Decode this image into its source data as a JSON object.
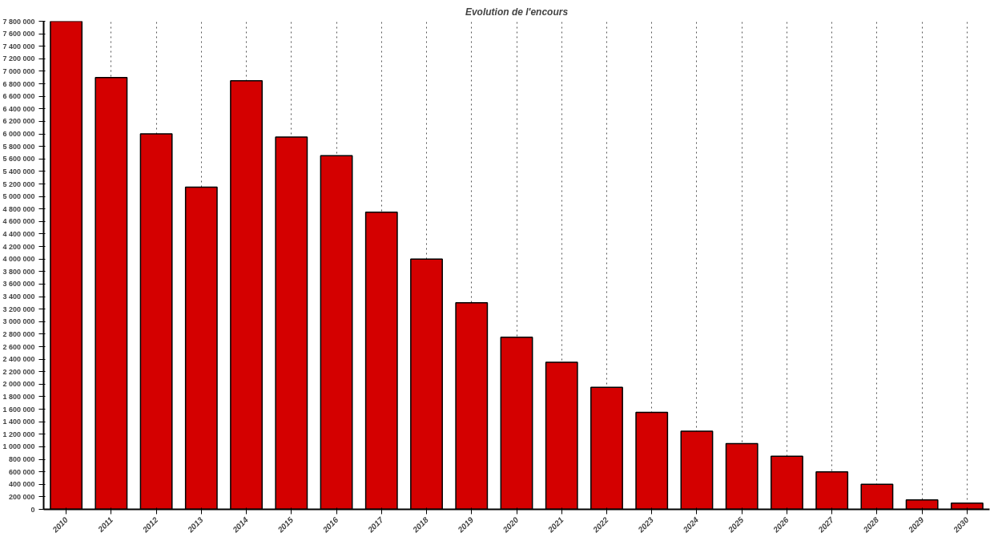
{
  "chart_data": {
    "type": "bar",
    "title": "Evolution de l'encours",
    "categories": [
      "2010",
      "2011",
      "2012",
      "2013",
      "2014",
      "2015",
      "2016",
      "2017",
      "2018",
      "2019",
      "2020",
      "2021",
      "2022",
      "2023",
      "2024",
      "2025",
      "2026",
      "2027",
      "2028",
      "2029",
      "2030"
    ],
    "series": [
      {
        "color": "#d40000",
        "values": [
          7800000,
          6900000,
          6000000,
          5150000,
          6850000,
          5950000,
          5650000,
          4750000,
          4000000,
          3300000,
          2750000,
          2350000,
          1950000,
          1550000,
          1250000,
          1050000,
          850000,
          600000,
          400000,
          150000,
          100000
        ]
      }
    ],
    "ylim": [
      0,
      7800000
    ],
    "yticks": [
      0,
      {
        "value": 200000,
        "label": "200 000"
      },
      {
        "value": 400000,
        "label": "400 000"
      },
      {
        "value": 600000,
        "label": "600 000"
      },
      {
        "value": 800000,
        "label": "800 000"
      },
      {
        "value": 1000000,
        "label": "1 000 000"
      },
      {
        "value": 1200000,
        "label": "1 200 000"
      },
      {
        "value": 1400000,
        "label": "1 400 000"
      },
      {
        "value": 1600000,
        "label": "1 600 000"
      },
      {
        "value": 1800000,
        "label": "1 800 000"
      },
      {
        "value": 2000000,
        "label": "2 000 000"
      },
      {
        "value": 2200000,
        "label": "2 200 000"
      },
      {
        "value": 2400000,
        "label": "2 400 000"
      },
      {
        "value": 2600000,
        "label": "2 600 000"
      },
      {
        "value": 2800000,
        "label": "2 800 000"
      },
      {
        "value": 3000000,
        "label": "3 000 000"
      },
      {
        "value": 3200000,
        "label": "3 200 000"
      },
      {
        "value": 3400000,
        "label": "3 400 000"
      },
      {
        "value": 3600000,
        "label": "3 600 000"
      },
      {
        "value": 3800000,
        "label": "3 800 000"
      },
      {
        "value": 4000000,
        "label": "4 000 000"
      },
      {
        "value": 4200000,
        "label": "4 200 000"
      },
      {
        "value": 4400000,
        "label": "4 400 000"
      },
      {
        "value": 4600000,
        "label": "4 600 000"
      },
      {
        "value": 4800000,
        "label": "4 800 000"
      },
      {
        "value": 5000000,
        "label": "5 000 000"
      },
      {
        "value": 5200000,
        "label": "5 200 000"
      },
      {
        "value": 5400000,
        "label": "5 400 000"
      },
      {
        "value": 5600000,
        "label": "5 600 000"
      },
      {
        "value": 5800000,
        "label": "5 800 000"
      },
      {
        "value": 6000000,
        "label": "6 000 000"
      },
      {
        "value": 6200000,
        "label": "6 200 000"
      },
      {
        "value": 6400000,
        "label": "6 400 000"
      },
      {
        "value": 6600000,
        "label": "6 600 000"
      },
      {
        "value": 6800000,
        "label": "6 800 000"
      },
      {
        "value": 7000000,
        "label": "7 000 000"
      },
      {
        "value": 7200000,
        "label": "7 200 000"
      },
      {
        "value": 7400000,
        "label": "7 400 000"
      },
      {
        "value": 7600000,
        "label": "7 600 000"
      },
      {
        "value": 7800000,
        "label": "7 800 000"
      }
    ],
    "grid": "x"
  }
}
